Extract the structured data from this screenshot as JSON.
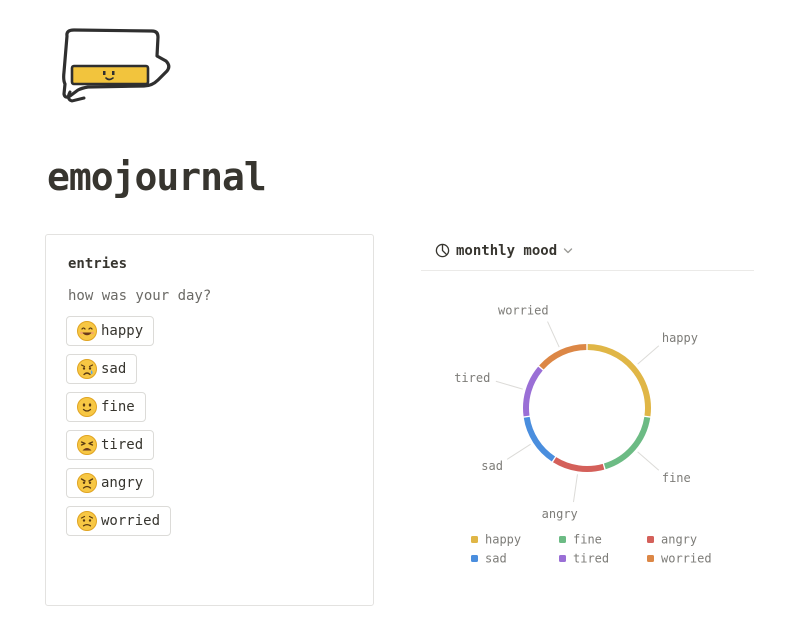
{
  "page": {
    "title": "emojournal",
    "icon": "speech-bubble-smiley-icon"
  },
  "entries": {
    "title": "entries",
    "prompt": "how was your day?",
    "moods": [
      {
        "label": "happy",
        "icon": "grinning-face-icon"
      },
      {
        "label": "sad",
        "icon": "crying-face-icon"
      },
      {
        "label": "fine",
        "icon": "slightly-smiling-face-icon"
      },
      {
        "label": "tired",
        "icon": "tired-face-icon"
      },
      {
        "label": "angry",
        "icon": "angry-face-icon"
      },
      {
        "label": "worried",
        "icon": "worried-face-icon"
      }
    ]
  },
  "chart_view": {
    "label": "monthly mood",
    "icon": "pie-chart-icon",
    "dropdown_icon": "chevron-down-icon"
  },
  "chart_data": {
    "type": "pie",
    "style": "donut",
    "legend_position": "bottom",
    "slices": [
      {
        "label": "happy",
        "value": 3,
        "color": "#e0b646"
      },
      {
        "label": "fine",
        "value": 2,
        "color": "#6cbb84"
      },
      {
        "label": "angry",
        "value": 1.5,
        "color": "#d4605a"
      },
      {
        "label": "sad",
        "value": 1.5,
        "color": "#4a8ede"
      },
      {
        "label": "tired",
        "value": 1.5,
        "color": "#9a6fd6"
      },
      {
        "label": "worried",
        "value": 1.5,
        "color": "#dc8746"
      }
    ],
    "legend": [
      "happy",
      "fine",
      "angry",
      "sad",
      "tired",
      "worried"
    ]
  }
}
